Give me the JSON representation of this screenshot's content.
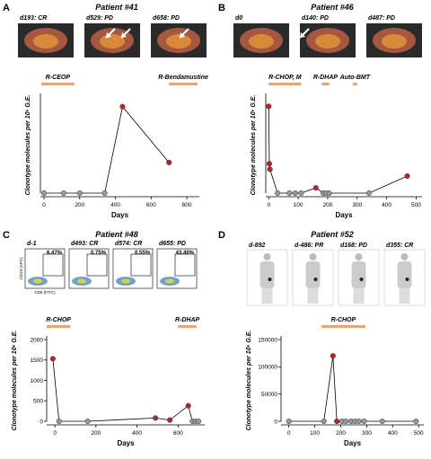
{
  "chart_data": [
    {
      "type": "line",
      "panel": "A",
      "title": "Patient #41",
      "image_labels": [
        "d193: CR",
        "d529: PD",
        "d658: PD"
      ],
      "treatments": [
        {
          "label": "R-CEOP",
          "start": -15,
          "end": 170
        },
        {
          "label": "R-Bendamustine",
          "start": 700,
          "end": 860
        }
      ],
      "x": [
        0,
        110,
        200,
        340,
        440,
        700
      ],
      "series": [
        {
          "values": [
            0,
            0,
            0,
            0,
            2880,
            1020
          ],
          "colors": [
            "#999999",
            "#999999",
            "#999999",
            "#999999",
            "#b5252a",
            "#b5252a"
          ]
        }
      ],
      "xlabel": "Days",
      "ylabel": "Clonotype molecules per 10⁶ G.E.",
      "xlim": [
        -20,
        870
      ],
      "xticks": [
        0,
        200,
        400,
        600,
        800
      ],
      "ylim": [
        0,
        3200
      ],
      "yticks": []
    },
    {
      "type": "line",
      "panel": "B",
      "title": "Patient #46",
      "image_labels": [
        "d0",
        "d140: PD",
        "d487: PD"
      ],
      "treatments": [
        {
          "label": "R-CHOP, M",
          "start": 0,
          "end": 110
        },
        {
          "label": "R-DHAP",
          "start": 180,
          "end": 205
        },
        {
          "label": "Auto-BMT",
          "start": 285,
          "end": 300
        }
      ],
      "x": [
        0,
        2,
        4,
        30,
        70,
        90,
        110,
        160,
        185,
        195,
        205,
        340,
        470
      ],
      "series": [
        {
          "values": [
            2800,
            950,
            770,
            0,
            0,
            0,
            0,
            170,
            0,
            0,
            0,
            0,
            550
          ],
          "colors": [
            "#b5252a",
            "#b5252a",
            "#b5252a",
            "#999999",
            "#999999",
            "#999999",
            "#999999",
            "#b5252a",
            "#999999",
            "#999999",
            "#999999",
            "#999999",
            "#b5252a"
          ]
        }
      ],
      "xlabel": "Days",
      "ylabel": "Clonotype molecules per 10⁶ G.E.",
      "xlim": [
        -10,
        520
      ],
      "xticks": [
        0,
        100,
        200,
        300,
        400,
        500
      ],
      "ylim": [
        0,
        3100
      ],
      "yticks": []
    },
    {
      "type": "line",
      "panel": "C",
      "title": "Patient #48",
      "image_labels": [
        "d-1",
        "d493: CR",
        "d574: CR",
        "d655: PD"
      ],
      "gate_labels": [
        "6.47%",
        "0.75%",
        "0.55%",
        "43.40%"
      ],
      "flow_axis_labels": {
        "y": "CD19 (APC)",
        "x": "CD5 (FITC)"
      },
      "treatments": [
        {
          "label": "R-CHOP",
          "start": -40,
          "end": 75
        },
        {
          "label": "R-DHAP",
          "start": 600,
          "end": 690
        }
      ],
      "x": [
        -10,
        20,
        160,
        490,
        560,
        650,
        670,
        685,
        700
      ],
      "series": [
        {
          "values": [
            1530,
            0,
            0,
            80,
            30,
            380,
            0,
            0,
            0
          ],
          "colors": [
            "#b5252a",
            "#999999",
            "#999999",
            "#b5252a",
            "#b5252a",
            "#b5252a",
            "#999999",
            "#999999",
            "#999999"
          ]
        }
      ],
      "xlabel": "Days",
      "ylabel": "Clonotype molecules per 10⁶ G.E.",
      "xlim": [
        -40,
        730
      ],
      "xticks": [
        0,
        200,
        400,
        600
      ],
      "ylim": [
        0,
        2000
      ],
      "yticks": [
        0,
        500,
        1000,
        1500,
        2000
      ]
    },
    {
      "type": "line",
      "panel": "D",
      "title": "Patient #52",
      "image_labels": [
        "d-892",
        "d-486: PR",
        "d168: PD",
        "d355: CR"
      ],
      "treatments": [
        {
          "label": "R-CHOP",
          "start": 125,
          "end": 295
        }
      ],
      "x": [
        0,
        135,
        170,
        185,
        205,
        220,
        240,
        255,
        270,
        290,
        360,
        490
      ],
      "series": [
        {
          "values": [
            0,
            0,
            120000,
            0,
            0,
            0,
            0,
            0,
            0,
            0,
            0,
            0
          ],
          "colors": [
            "#999999",
            "#999999",
            "#b5252a",
            "#b5252a",
            "#999999",
            "#999999",
            "#999999",
            "#999999",
            "#999999",
            "#999999",
            "#999999",
            "#999999"
          ]
        }
      ],
      "xlabel": "Days",
      "ylabel": "Clonotype molecules per 10⁶ G.E.",
      "xlim": [
        -30,
        520
      ],
      "xticks": [
        0,
        100,
        200,
        300,
        400,
        500
      ],
      "ylim": [
        0,
        150000
      ],
      "yticks": [
        0,
        50000,
        100000,
        150000
      ]
    }
  ]
}
